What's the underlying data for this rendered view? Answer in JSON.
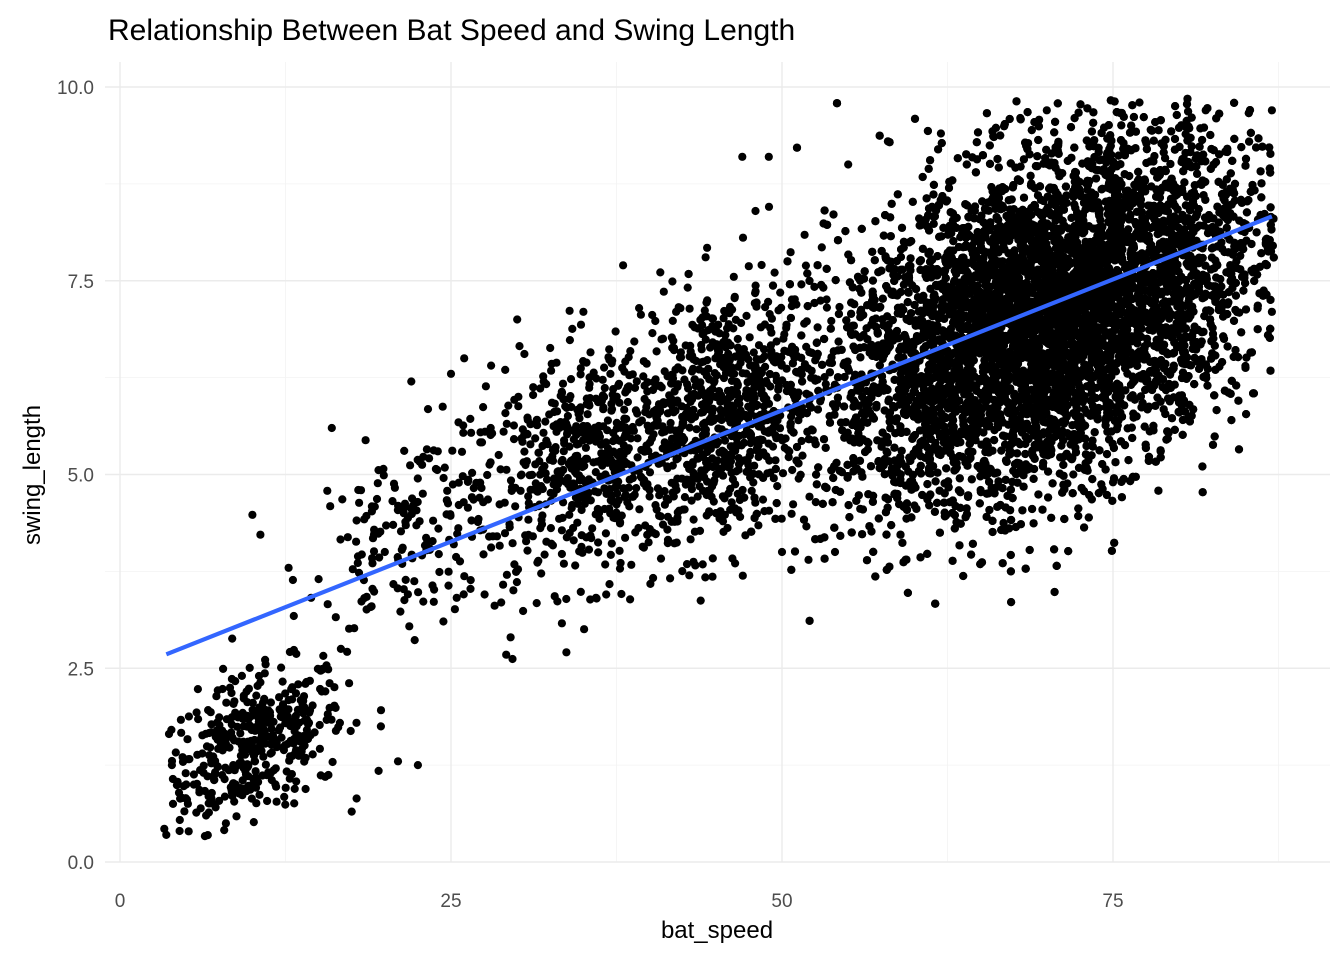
{
  "chart_data": {
    "type": "scatter",
    "title": "Relationship Between Bat Speed and Swing Length",
    "xlabel": "bat_speed",
    "ylabel": "swing_length",
    "xlim": [
      0,
      90
    ],
    "ylim": [
      0,
      10
    ],
    "x_ticks": [
      0,
      25,
      50,
      75
    ],
    "x_tick_labels": [
      "0",
      "25",
      "50",
      "75"
    ],
    "y_ticks": [
      0,
      2.5,
      5,
      7.5,
      10
    ],
    "y_tick_labels": [
      "0.0",
      "2.5",
      "5.0",
      "7.5",
      "10.0"
    ],
    "grid": true,
    "legend": "none",
    "point_color": "#000000",
    "trend_color": "#3366FF",
    "trend_line": {
      "method": "linear",
      "x": [
        3.5,
        87
      ],
      "y": [
        2.68,
        8.33
      ]
    },
    "points_sample": [
      {
        "x": 3.5,
        "y": 0.35
      },
      {
        "x": 4.0,
        "y": 0.75
      },
      {
        "x": 4.5,
        "y": 0.4
      },
      {
        "x": 5.0,
        "y": 1.0
      },
      {
        "x": 6.0,
        "y": 0.9
      },
      {
        "x": 6.5,
        "y": 0.6
      },
      {
        "x": 7.0,
        "y": 1.3
      },
      {
        "x": 8.0,
        "y": 0.5
      },
      {
        "x": 8.5,
        "y": 1.6
      },
      {
        "x": 9.0,
        "y": 1.9
      },
      {
        "x": 9.5,
        "y": 1.2
      },
      {
        "x": 10.0,
        "y": 4.48
      },
      {
        "x": 10.5,
        "y": 2.4
      },
      {
        "x": 11.0,
        "y": 2.55
      },
      {
        "x": 12.0,
        "y": 1.7
      },
      {
        "x": 13.0,
        "y": 2.1
      },
      {
        "x": 14.0,
        "y": 2.3
      },
      {
        "x": 15.0,
        "y": 3.65
      },
      {
        "x": 15.5,
        "y": 1.1
      },
      {
        "x": 16.0,
        "y": 5.6
      },
      {
        "x": 17.5,
        "y": 0.65
      },
      {
        "x": 18.0,
        "y": 4.8
      },
      {
        "x": 19.0,
        "y": 3.3
      },
      {
        "x": 20.0,
        "y": 4.0
      },
      {
        "x": 21.0,
        "y": 1.3
      },
      {
        "x": 22.0,
        "y": 6.2
      },
      {
        "x": 22.5,
        "y": 1.25
      },
      {
        "x": 24.0,
        "y": 5.3
      },
      {
        "x": 25.0,
        "y": 6.3
      },
      {
        "x": 26.0,
        "y": 6.5
      },
      {
        "x": 28.0,
        "y": 5.6
      },
      {
        "x": 29.5,
        "y": 2.9
      },
      {
        "x": 30.0,
        "y": 7.0
      },
      {
        "x": 32.0,
        "y": 6.2
      },
      {
        "x": 35.0,
        "y": 7.1
      },
      {
        "x": 36.0,
        "y": 3.4
      },
      {
        "x": 38.0,
        "y": 7.7
      },
      {
        "x": 40.0,
        "y": 4.8
      },
      {
        "x": 42.0,
        "y": 7.1
      },
      {
        "x": 43.0,
        "y": 3.7
      },
      {
        "x": 45.0,
        "y": 6.0
      },
      {
        "x": 47.0,
        "y": 9.1
      },
      {
        "x": 48.0,
        "y": 8.4
      },
      {
        "x": 49.0,
        "y": 9.1
      },
      {
        "x": 50.0,
        "y": 4.0
      },
      {
        "x": 52.0,
        "y": 3.9
      },
      {
        "x": 54.0,
        "y": 4.0
      },
      {
        "x": 55.0,
        "y": 9.0
      },
      {
        "x": 58.0,
        "y": 9.3
      },
      {
        "x": 60.0,
        "y": 4.6
      },
      {
        "x": 62.0,
        "y": 9.4
      },
      {
        "x": 65.0,
        "y": 4.8
      },
      {
        "x": 68.0,
        "y": 9.6
      },
      {
        "x": 70.0,
        "y": 9.7
      },
      {
        "x": 72.0,
        "y": 5.0
      },
      {
        "x": 75.0,
        "y": 4.9
      },
      {
        "x": 77.0,
        "y": 9.8
      },
      {
        "x": 80.0,
        "y": 5.8
      },
      {
        "x": 82.0,
        "y": 9.7
      },
      {
        "x": 85.0,
        "y": 6.4
      },
      {
        "x": 87.0,
        "y": 9.7
      },
      {
        "x": 87.0,
        "y": 7.1
      }
    ],
    "point_clusters": [
      {
        "x_center": 10,
        "y_center": 1.5,
        "x_spread": 3.5,
        "y_spread": 0.45,
        "count": 420
      },
      {
        "x_center": 22,
        "y_center": 4.3,
        "x_spread": 4,
        "y_spread": 0.6,
        "count": 160
      },
      {
        "x_center": 36,
        "y_center": 5.2,
        "x_spread": 5,
        "y_spread": 0.75,
        "count": 700
      },
      {
        "x_center": 46,
        "y_center": 5.8,
        "x_spread": 3.5,
        "y_spread": 0.85,
        "count": 650
      },
      {
        "x_center": 70,
        "y_center": 7.0,
        "x_spread": 8,
        "y_spread": 1.05,
        "count": 11000
      }
    ]
  }
}
